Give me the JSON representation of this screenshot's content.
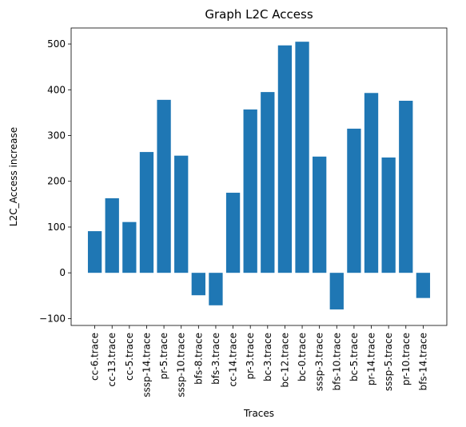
{
  "chart_data": {
    "type": "bar",
    "title": "Graph L2C Access",
    "xlabel": "Traces",
    "ylabel": "L2C_Access increase",
    "categories": [
      "cc-6.trace",
      "cc-13.trace",
      "cc-5.trace",
      "sssp-14.trace",
      "pr-5.trace",
      "sssp-10.trace",
      "bfs-8.trace",
      "bfs-3.trace",
      "cc-14.trace",
      "pr-3.trace",
      "bc-3.trace",
      "bc-12.trace",
      "bc-0.trace",
      "sssp-3.trace",
      "bfs-10.trace",
      "bc-5.trace",
      "pr-14.trace",
      "sssp-5.trace",
      "pr-10.trace",
      "bfs-14.trace"
    ],
    "values": [
      91,
      163,
      111,
      264,
      378,
      256,
      -49,
      -71,
      175,
      357,
      395,
      497,
      505,
      254,
      -80,
      315,
      393,
      252,
      376,
      -55
    ],
    "ylim": [
      -115,
      535
    ],
    "yticks": [
      -100,
      0,
      100,
      200,
      300,
      400,
      500
    ],
    "bar_color": "#1f77b4",
    "grid": false,
    "legend": "none"
  }
}
